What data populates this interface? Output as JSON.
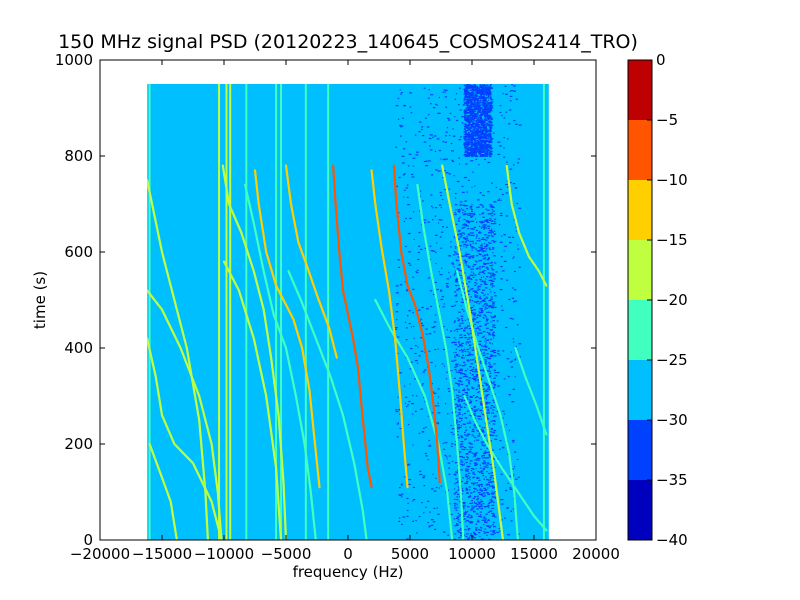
{
  "chart_data": {
    "type": "heatmap",
    "title": "150 MHz signal PSD (20120223_140645_COSMOS2414_TRO)",
    "xlabel": "frequency (Hz)",
    "ylabel": "time (s)",
    "xlim": [
      -20000,
      20000
    ],
    "ylim": [
      0,
      1000
    ],
    "xticks": [
      -20000,
      -15000,
      -10000,
      -5000,
      0,
      5000,
      10000,
      15000,
      20000
    ],
    "xtick_labels": [
      "−20000",
      "−15000",
      "−10000",
      "−5000",
      "0",
      "5000",
      "10000",
      "15000",
      "20000"
    ],
    "yticks": [
      0,
      200,
      400,
      600,
      800,
      1000
    ],
    "ytick_labels": [
      "0",
      "200",
      "400",
      "600",
      "800",
      "1000"
    ],
    "data_extent": {
      "x": [
        -16200,
        16200
      ],
      "y": [
        0,
        950
      ]
    },
    "background_level": -28,
    "colorbar": {
      "levels": [
        -40,
        -35,
        -30,
        -25,
        -20,
        -15,
        -10,
        -5,
        0
      ],
      "tick_labels": [
        "−40",
        "−35",
        "−30",
        "−25",
        "−20",
        "−15",
        "−10",
        "−5",
        "0"
      ],
      "colors": [
        "#0000bf",
        "#0040ff",
        "#00bfff",
        "#40ffbf",
        "#bfff40",
        "#ffcf00",
        "#ff5500",
        "#bf0000"
      ]
    },
    "vertical_lines": [
      {
        "x": -16000,
        "level": -22
      },
      {
        "x": -10400,
        "level": -18
      },
      {
        "x": -9800,
        "level": -18
      },
      {
        "x": -9500,
        "level": -18
      },
      {
        "x": -8200,
        "level": -22
      },
      {
        "x": -5800,
        "level": -22
      },
      {
        "x": -5400,
        "level": -22
      },
      {
        "x": -3400,
        "level": -22
      },
      {
        "x": -1600,
        "level": -22
      },
      {
        "x": 15800,
        "level": -22
      }
    ],
    "traces": [
      {
        "level": -10,
        "points": [
          [
            -1200,
            780
          ],
          [
            -1000,
            700
          ],
          [
            -700,
            600
          ],
          [
            -400,
            520
          ],
          [
            0,
            470
          ],
          [
            400,
            420
          ],
          [
            800,
            360
          ],
          [
            1200,
            250
          ],
          [
            1600,
            150
          ],
          [
            1900,
            110
          ]
        ]
      },
      {
        "level": -10,
        "points": [
          [
            3700,
            780
          ],
          [
            3900,
            700
          ],
          [
            4300,
            600
          ],
          [
            4800,
            530
          ],
          [
            5400,
            490
          ],
          [
            6000,
            430
          ],
          [
            6500,
            360
          ],
          [
            6900,
            280
          ],
          [
            7200,
            200
          ],
          [
            7400,
            120
          ]
        ]
      },
      {
        "level": -15,
        "points": [
          [
            -7500,
            770
          ],
          [
            -7200,
            700
          ],
          [
            -6600,
            600
          ],
          [
            -5800,
            530
          ],
          [
            -5000,
            490
          ],
          [
            -4400,
            460
          ],
          [
            -3700,
            400
          ],
          [
            -3100,
            310
          ],
          [
            -2700,
            210
          ],
          [
            -2300,
            110
          ]
        ]
      },
      {
        "level": -15,
        "points": [
          [
            -5000,
            780
          ],
          [
            -4600,
            700
          ],
          [
            -4000,
            620
          ],
          [
            -3300,
            570
          ],
          [
            -2500,
            510
          ],
          [
            -1500,
            440
          ],
          [
            -900,
            380
          ]
        ]
      },
      {
        "level": -15,
        "points": [
          [
            1900,
            770
          ],
          [
            2200,
            700
          ],
          [
            2700,
            610
          ],
          [
            3300,
            520
          ],
          [
            3800,
            420
          ],
          [
            4200,
            300
          ],
          [
            4500,
            200
          ],
          [
            4800,
            110
          ]
        ]
      },
      {
        "level": -20,
        "points": [
          [
            -16200,
            750
          ],
          [
            -15800,
            700
          ],
          [
            -15000,
            600
          ],
          [
            -14000,
            500
          ],
          [
            -13000,
            400
          ],
          [
            -12000,
            250
          ],
          [
            -11500,
            100
          ],
          [
            -11300,
            0
          ]
        ]
      },
      {
        "level": -20,
        "points": [
          [
            -16200,
            520
          ],
          [
            -15000,
            480
          ],
          [
            -13500,
            400
          ],
          [
            -12000,
            300
          ],
          [
            -11000,
            200
          ],
          [
            -10500,
            100
          ],
          [
            -10200,
            0
          ]
        ]
      },
      {
        "level": -20,
        "points": [
          [
            -16200,
            420
          ],
          [
            -15500,
            340
          ],
          [
            -15000,
            260
          ],
          [
            -14000,
            200
          ],
          [
            -12500,
            160
          ],
          [
            -11000,
            80
          ],
          [
            -10200,
            0
          ]
        ]
      },
      {
        "level": -20,
        "points": [
          [
            -10100,
            780
          ],
          [
            -9600,
            700
          ],
          [
            -8600,
            640
          ],
          [
            -7600,
            560
          ],
          [
            -6800,
            480
          ],
          [
            -6200,
            380
          ],
          [
            -5600,
            260
          ],
          [
            -5200,
            120
          ],
          [
            -5000,
            0
          ]
        ]
      },
      {
        "level": -20,
        "points": [
          [
            -16000,
            200
          ],
          [
            -15000,
            130
          ],
          [
            -14300,
            80
          ],
          [
            -13800,
            0
          ]
        ]
      },
      {
        "level": -20,
        "points": [
          [
            7600,
            780
          ],
          [
            8200,
            700
          ],
          [
            9000,
            600
          ],
          [
            9800,
            480
          ],
          [
            10500,
            360
          ],
          [
            11200,
            240
          ],
          [
            11800,
            140
          ],
          [
            12200,
            60
          ],
          [
            12500,
            0
          ]
        ]
      },
      {
        "level": -20,
        "points": [
          [
            12800,
            780
          ],
          [
            13200,
            700
          ],
          [
            13800,
            640
          ],
          [
            14600,
            590
          ],
          [
            15400,
            560
          ],
          [
            16000,
            530
          ]
        ]
      },
      {
        "level": -20,
        "points": [
          [
            -10000,
            580
          ],
          [
            -8800,
            520
          ],
          [
            -7600,
            420
          ],
          [
            -6600,
            300
          ],
          [
            -5800,
            150
          ],
          [
            -5400,
            0
          ]
        ]
      },
      {
        "level": -22,
        "points": [
          [
            -8300,
            740
          ],
          [
            -7600,
            660
          ],
          [
            -6800,
            560
          ],
          [
            -6000,
            470
          ],
          [
            -5000,
            400
          ],
          [
            -4200,
            300
          ],
          [
            -3500,
            200
          ],
          [
            -3000,
            100
          ],
          [
            -2600,
            0
          ]
        ]
      },
      {
        "level": -22,
        "points": [
          [
            -4800,
            560
          ],
          [
            -3800,
            500
          ],
          [
            -2600,
            420
          ],
          [
            -1400,
            340
          ],
          [
            -400,
            260
          ],
          [
            500,
            160
          ],
          [
            1200,
            60
          ],
          [
            1500,
            0
          ]
        ]
      },
      {
        "level": -22,
        "points": [
          [
            5600,
            740
          ],
          [
            6100,
            650
          ],
          [
            6700,
            560
          ],
          [
            7300,
            480
          ],
          [
            7900,
            400
          ],
          [
            8400,
            310
          ],
          [
            8800,
            200
          ],
          [
            9100,
            100
          ],
          [
            9300,
            0
          ]
        ]
      },
      {
        "level": -22,
        "points": [
          [
            2200,
            500
          ],
          [
            3400,
            440
          ],
          [
            4800,
            380
          ],
          [
            6200,
            300
          ],
          [
            7300,
            200
          ],
          [
            8000,
            100
          ],
          [
            8400,
            0
          ]
        ]
      },
      {
        "level": -22,
        "points": [
          [
            8800,
            560
          ],
          [
            9600,
            480
          ],
          [
            10500,
            400
          ],
          [
            11400,
            330
          ],
          [
            12300,
            260
          ],
          [
            13000,
            180
          ],
          [
            13400,
            100
          ],
          [
            13700,
            0
          ]
        ]
      },
      {
        "level": -22,
        "points": [
          [
            13500,
            400
          ],
          [
            14300,
            340
          ],
          [
            15200,
            280
          ],
          [
            16000,
            220
          ]
        ]
      },
      {
        "level": -22,
        "points": [
          [
            9400,
            300
          ],
          [
            10200,
            250
          ],
          [
            11200,
            200
          ],
          [
            12400,
            150
          ],
          [
            13700,
            100
          ],
          [
            15000,
            50
          ],
          [
            16000,
            20
          ]
        ]
      }
    ],
    "low_power_regions": [
      {
        "x": [
          3800,
          13800
        ],
        "y": [
          0,
          950
        ],
        "level": -35,
        "density": "sparse"
      },
      {
        "x": [
          8500,
          11800
        ],
        "y": [
          0,
          700
        ],
        "level": -35,
        "density": "dense"
      },
      {
        "x": [
          9300,
          11500
        ],
        "y": [
          800,
          950
        ],
        "level": -35,
        "density": "dense"
      }
    ]
  }
}
